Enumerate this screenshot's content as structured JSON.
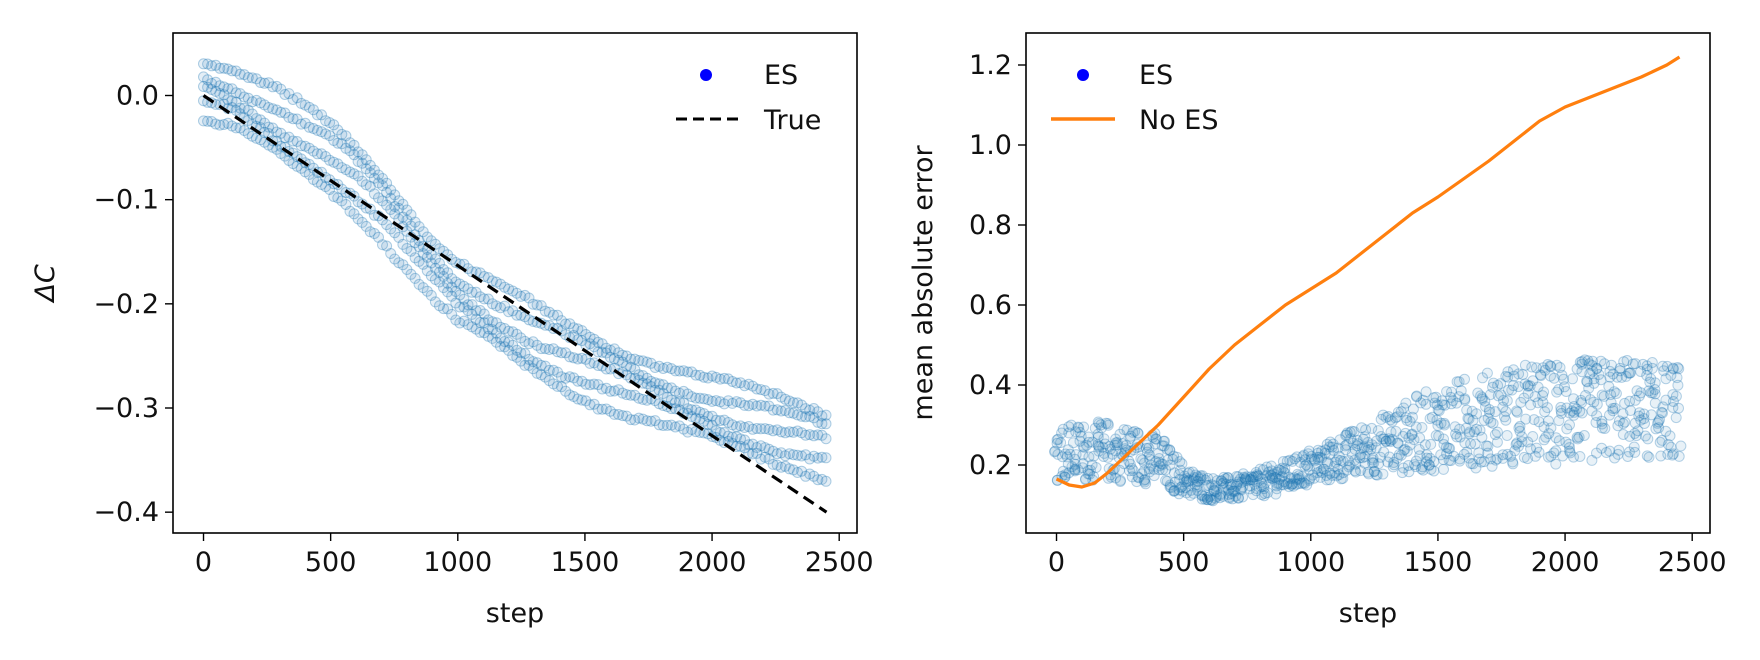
{
  "chart_data": [
    {
      "type": "scatter",
      "xlabel": "step",
      "ylabel": "ΔC",
      "xlim": [
        -120,
        2570
      ],
      "ylim": [
        -0.42,
        0.06
      ],
      "xticks": [
        0,
        500,
        1000,
        1500,
        2000,
        2500
      ],
      "xtick_labels": [
        "0",
        "500",
        "1000",
        "1500",
        "2000",
        "2500"
      ],
      "yticks": [
        0.0,
        -0.1,
        -0.2,
        -0.3,
        -0.4
      ],
      "ytick_labels": [
        "0.0",
        "−0.1",
        "−0.2",
        "−0.3",
        "−0.4"
      ],
      "legend": {
        "position": "top-right",
        "entries": [
          {
            "label": "ES",
            "marker": "dot",
            "color": "#0000ff"
          },
          {
            "label": "True",
            "marker": "dashed-line",
            "color": "#000000"
          }
        ]
      },
      "series": [
        {
          "name": "ES",
          "kind": "scatter-band",
          "color": "#1f77b4",
          "x_range": [
            0,
            2450
          ],
          "step": 16,
          "center_x": [
            0,
            100,
            200,
            300,
            400,
            500,
            600,
            700,
            800,
            900,
            1000,
            1100,
            1200,
            1300,
            1400,
            1500,
            1600,
            1700,
            1800,
            1900,
            2000,
            2100,
            2200,
            2300,
            2400,
            2450
          ],
          "center_y": [
            0.005,
            -0.002,
            -0.015,
            -0.03,
            -0.045,
            -0.06,
            -0.08,
            -0.105,
            -0.135,
            -0.165,
            -0.19,
            -0.205,
            -0.22,
            -0.235,
            -0.247,
            -0.258,
            -0.268,
            -0.278,
            -0.287,
            -0.296,
            -0.304,
            -0.311,
            -0.318,
            -0.324,
            -0.33,
            -0.334
          ],
          "offsets": [
            -0.03,
            -0.015,
            0.0,
            0.015,
            0.03
          ]
        },
        {
          "name": "True",
          "kind": "line",
          "style": "dashed",
          "color": "#000000",
          "x": [
            0,
            2450
          ],
          "y": [
            0.0,
            -0.4
          ]
        }
      ]
    },
    {
      "type": "line",
      "xlabel": "step",
      "ylabel": "mean absolute error",
      "xlim": [
        -120,
        2570
      ],
      "ylim": [
        0.03,
        1.28
      ],
      "xticks": [
        0,
        500,
        1000,
        1500,
        2000,
        2500
      ],
      "xtick_labels": [
        "0",
        "500",
        "1000",
        "1500",
        "2000",
        "2500"
      ],
      "yticks": [
        0.2,
        0.4,
        0.6,
        0.8,
        1.0,
        1.2
      ],
      "ytick_labels": [
        "0.2",
        "0.4",
        "0.6",
        "0.8",
        "1.0",
        "1.2"
      ],
      "legend": {
        "position": "top-left",
        "entries": [
          {
            "label": "ES",
            "marker": "dot",
            "color": "#0000ff"
          },
          {
            "label": "No ES",
            "marker": "line",
            "color": "#ff7f0e"
          }
        ]
      },
      "series": [
        {
          "name": "ES",
          "kind": "scatter-cloud",
          "color": "#1f77b4",
          "x_range": [
            0,
            2450
          ],
          "step": 10,
          "center_x": [
            0,
            200,
            400,
            500,
            600,
            700,
            800,
            900,
            1000,
            1200,
            1400,
            1600,
            1800,
            2000,
            2200,
            2450
          ],
          "lower": [
            0.16,
            0.16,
            0.15,
            0.12,
            0.11,
            0.11,
            0.12,
            0.13,
            0.15,
            0.17,
            0.18,
            0.19,
            0.2,
            0.2,
            0.21,
            0.22
          ],
          "upper": [
            0.3,
            0.31,
            0.28,
            0.2,
            0.17,
            0.17,
            0.19,
            0.21,
            0.24,
            0.3,
            0.37,
            0.42,
            0.45,
            0.46,
            0.47,
            0.45
          ]
        },
        {
          "name": "No ES",
          "kind": "line",
          "style": "solid",
          "color": "#ff7f0e",
          "x": [
            0,
            50,
            100,
            150,
            200,
            300,
            400,
            500,
            600,
            700,
            800,
            900,
            1000,
            1100,
            1200,
            1300,
            1400,
            1500,
            1600,
            1700,
            1800,
            1900,
            2000,
            2100,
            2200,
            2300,
            2400,
            2450
          ],
          "y": [
            0.165,
            0.15,
            0.145,
            0.155,
            0.18,
            0.24,
            0.3,
            0.37,
            0.44,
            0.5,
            0.55,
            0.6,
            0.64,
            0.68,
            0.73,
            0.78,
            0.83,
            0.87,
            0.915,
            0.96,
            1.01,
            1.06,
            1.095,
            1.12,
            1.145,
            1.17,
            1.2,
            1.22
          ]
        }
      ]
    }
  ]
}
